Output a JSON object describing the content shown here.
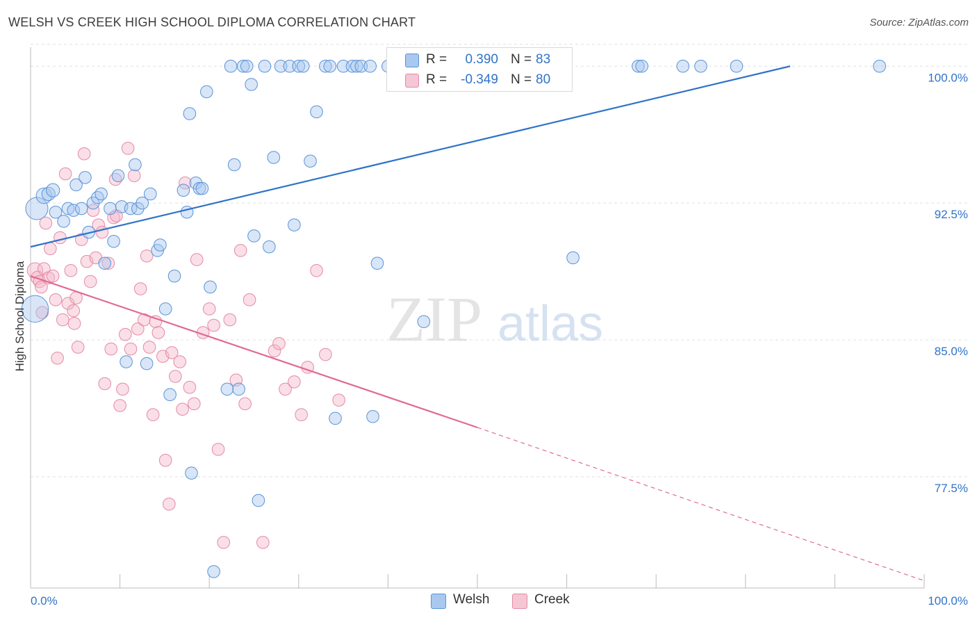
{
  "title": "WELSH VS CREEK HIGH SCHOOL DIPLOMA CORRELATION CHART",
  "source": "Source: ZipAtlas.com",
  "watermark": {
    "zip": "ZIP",
    "atlas": "atlas"
  },
  "colors": {
    "welsh_fill": "#a9c8f0",
    "welsh_stroke": "#5b93d6",
    "welsh_line": "#2f73c9",
    "creek_fill": "#f5b7c9",
    "creek_stroke": "#e48aa8",
    "creek_line": "#e06a93",
    "value_text": "#2f73c9",
    "grid": "#e0e0e0"
  },
  "legend_top": {
    "r_label": "R =",
    "n_label": "N =",
    "welsh": {
      "r": "0.390",
      "n": "83"
    },
    "creek": {
      "r": "-0.349",
      "n": "80"
    }
  },
  "chart_data": {
    "type": "scatter",
    "title": "WELSH VS CREEK HIGH SCHOOL DIPLOMA CORRELATION CHART",
    "xlabel": "",
    "ylabel": "High School Diploma",
    "xlim": [
      0,
      100
    ],
    "ylim": [
      71.4,
      101.8
    ],
    "x_tick_labels": [
      "0.0%",
      "100.0%"
    ],
    "y_ticks": [
      77.5,
      85.0,
      92.5,
      100.0
    ],
    "y_tick_labels": [
      "77.5%",
      "85.0%",
      "92.5%",
      "100.0%"
    ],
    "grid": true,
    "legend": "bottom-center",
    "series": [
      {
        "name": "Welsh",
        "r": 0.39,
        "n": 83,
        "trend": {
          "x0": 0,
          "y0": 90.1,
          "x1": 85,
          "y1": 100.0
        },
        "points": [
          [
            0.5,
            86.7,
            24
          ],
          [
            0.7,
            92.2,
            20
          ],
          [
            1.5,
            92.9,
            14
          ],
          [
            2.0,
            93.0,
            12
          ],
          [
            2.5,
            93.2,
            12
          ],
          [
            2.8,
            92.0,
            11
          ],
          [
            3.7,
            91.5,
            11
          ],
          [
            4.2,
            92.2,
            11
          ],
          [
            4.8,
            92.1,
            11
          ],
          [
            5.1,
            93.5,
            11
          ],
          [
            5.7,
            92.2,
            11
          ],
          [
            6.1,
            93.9,
            11
          ],
          [
            6.5,
            90.9,
            11
          ],
          [
            7.0,
            92.5,
            11
          ],
          [
            7.5,
            92.8,
            11
          ],
          [
            7.9,
            93.0,
            11
          ],
          [
            8.3,
            89.2,
            11
          ],
          [
            8.9,
            92.2,
            11
          ],
          [
            9.3,
            90.4,
            11
          ],
          [
            9.8,
            94.0,
            11
          ],
          [
            10.2,
            92.3,
            11
          ],
          [
            10.7,
            83.8,
            11
          ],
          [
            11.2,
            92.2,
            11
          ],
          [
            11.7,
            94.6,
            11
          ],
          [
            12.0,
            92.2,
            11
          ],
          [
            12.5,
            92.5,
            11
          ],
          [
            13.0,
            83.7,
            11
          ],
          [
            13.4,
            93.0,
            11
          ],
          [
            14.2,
            89.9,
            11
          ],
          [
            14.5,
            90.2,
            11
          ],
          [
            15.1,
            86.7,
            11
          ],
          [
            15.6,
            82.0,
            11
          ],
          [
            16.1,
            88.5,
            11
          ],
          [
            17.1,
            93.2,
            11
          ],
          [
            17.5,
            92.0,
            11
          ],
          [
            17.8,
            97.4,
            11
          ],
          [
            18.0,
            77.7,
            11
          ],
          [
            18.5,
            93.6,
            11
          ],
          [
            18.9,
            93.3,
            11
          ],
          [
            19.2,
            93.3,
            11
          ],
          [
            19.7,
            98.6,
            11
          ],
          [
            20.1,
            87.9,
            11
          ],
          [
            20.5,
            72.3,
            11
          ],
          [
            22.0,
            82.3,
            11
          ],
          [
            22.4,
            100.0,
            11
          ],
          [
            22.8,
            94.6,
            11
          ],
          [
            23.3,
            82.3,
            11
          ],
          [
            23.8,
            100.0,
            11
          ],
          [
            24.2,
            100.0,
            11
          ],
          [
            24.7,
            99.0,
            11
          ],
          [
            25.0,
            90.7,
            11
          ],
          [
            25.5,
            76.2,
            11
          ],
          [
            26.2,
            100.0,
            11
          ],
          [
            26.7,
            90.1,
            11
          ],
          [
            27.2,
            95.0,
            11
          ],
          [
            28.0,
            100.0,
            11
          ],
          [
            29.0,
            100.0,
            11
          ],
          [
            29.5,
            91.3,
            11
          ],
          [
            30.0,
            100.0,
            11
          ],
          [
            30.5,
            100.0,
            11
          ],
          [
            31.3,
            94.8,
            11
          ],
          [
            32.0,
            97.5,
            11
          ],
          [
            33.0,
            100.0,
            11
          ],
          [
            33.5,
            100.0,
            11
          ],
          [
            34.1,
            80.7,
            11
          ],
          [
            35.0,
            100.0,
            11
          ],
          [
            36.0,
            100.0,
            11
          ],
          [
            36.5,
            100.0,
            11
          ],
          [
            37.0,
            100.0,
            11
          ],
          [
            38.0,
            100.0,
            11
          ],
          [
            38.3,
            80.8,
            11
          ],
          [
            38.8,
            89.2,
            11
          ],
          [
            40.0,
            100.0,
            11
          ],
          [
            41.0,
            100.0,
            11
          ],
          [
            43.0,
            100.0,
            11
          ],
          [
            44.0,
            86.0,
            11
          ],
          [
            60.7,
            89.5,
            11
          ],
          [
            68.0,
            100.0,
            11
          ],
          [
            68.4,
            100.0,
            11
          ],
          [
            73.0,
            100.0,
            11
          ],
          [
            75.0,
            100.0,
            11
          ],
          [
            79.0,
            100.0,
            11
          ],
          [
            95.0,
            100.0,
            11
          ]
        ]
      },
      {
        "name": "Creek",
        "r": -0.349,
        "n": 80,
        "trend": {
          "x0": 0,
          "y0": 88.5,
          "x1": 50,
          "y1": 80.2
        },
        "trend_extension": {
          "x0": 50,
          "y0": 80.2,
          "x1": 100,
          "y1": 71.8
        },
        "points": [
          [
            0.5,
            88.8,
            14
          ],
          [
            0.8,
            88.4,
            12
          ],
          [
            1.0,
            88.2,
            11
          ],
          [
            1.2,
            87.9,
            11
          ],
          [
            1.5,
            88.9,
            11
          ],
          [
            1.7,
            91.4,
            11
          ],
          [
            2.0,
            88.4,
            11
          ],
          [
            2.2,
            90.0,
            11
          ],
          [
            2.5,
            88.5,
            11
          ],
          [
            2.8,
            87.2,
            11
          ],
          [
            3.0,
            84.0,
            11
          ],
          [
            3.3,
            90.6,
            11
          ],
          [
            3.6,
            86.1,
            11
          ],
          [
            3.9,
            94.1,
            11
          ],
          [
            4.2,
            87.0,
            11
          ],
          [
            4.5,
            88.8,
            11
          ],
          [
            4.8,
            86.6,
            11
          ],
          [
            5.1,
            87.3,
            11
          ],
          [
            5.3,
            84.6,
            11
          ],
          [
            5.7,
            90.5,
            11
          ],
          [
            6.0,
            95.2,
            11
          ],
          [
            6.3,
            89.3,
            11
          ],
          [
            6.7,
            88.2,
            11
          ],
          [
            7.0,
            92.1,
            11
          ],
          [
            7.3,
            89.5,
            11
          ],
          [
            7.6,
            91.3,
            11
          ],
          [
            8.0,
            90.9,
            11
          ],
          [
            8.3,
            82.6,
            11
          ],
          [
            8.7,
            89.2,
            11
          ],
          [
            9.0,
            84.5,
            11
          ],
          [
            9.3,
            91.7,
            11
          ],
          [
            9.6,
            91.8,
            11
          ],
          [
            10.0,
            81.4,
            11
          ],
          [
            10.3,
            82.3,
            11
          ],
          [
            10.6,
            85.3,
            11
          ],
          [
            10.9,
            95.5,
            11
          ],
          [
            11.2,
            84.5,
            11
          ],
          [
            11.6,
            94.0,
            11
          ],
          [
            12.0,
            85.6,
            11
          ],
          [
            12.3,
            87.8,
            11
          ],
          [
            12.7,
            86.1,
            11
          ],
          [
            13.0,
            89.6,
            11
          ],
          [
            13.3,
            84.6,
            11
          ],
          [
            13.7,
            80.9,
            11
          ],
          [
            14.0,
            86.0,
            11
          ],
          [
            14.3,
            85.4,
            11
          ],
          [
            14.8,
            84.1,
            11
          ],
          [
            15.1,
            78.4,
            11
          ],
          [
            15.5,
            76.0,
            11
          ],
          [
            15.8,
            84.3,
            11
          ],
          [
            16.2,
            83.0,
            11
          ],
          [
            16.7,
            83.8,
            11
          ],
          [
            17.0,
            81.2,
            11
          ],
          [
            17.3,
            93.6,
            11
          ],
          [
            17.8,
            82.4,
            11
          ],
          [
            18.3,
            81.5,
            11
          ],
          [
            18.6,
            89.4,
            11
          ],
          [
            19.3,
            85.4,
            11
          ],
          [
            20.0,
            86.7,
            11
          ],
          [
            20.5,
            85.8,
            11
          ],
          [
            21.0,
            79.0,
            11
          ],
          [
            21.6,
            73.9,
            11
          ],
          [
            22.3,
            86.1,
            11
          ],
          [
            23.0,
            82.8,
            11
          ],
          [
            23.5,
            89.9,
            11
          ],
          [
            24.0,
            81.5,
            11
          ],
          [
            24.5,
            87.2,
            11
          ],
          [
            26.0,
            73.9,
            11
          ],
          [
            27.3,
            84.4,
            11
          ],
          [
            27.8,
            84.8,
            11
          ],
          [
            28.5,
            82.3,
            11
          ],
          [
            29.5,
            82.7,
            11
          ],
          [
            30.3,
            80.9,
            11
          ],
          [
            31.0,
            83.5,
            11
          ],
          [
            32.0,
            88.8,
            11
          ],
          [
            33.0,
            84.2,
            11
          ],
          [
            34.5,
            81.7,
            11
          ],
          [
            1.3,
            86.5,
            11
          ],
          [
            4.9,
            85.9,
            11
          ],
          [
            9.5,
            93.8,
            11
          ]
        ]
      }
    ]
  },
  "legend_bottom": {
    "welsh_label": "Welsh",
    "creek_label": "Creek"
  }
}
